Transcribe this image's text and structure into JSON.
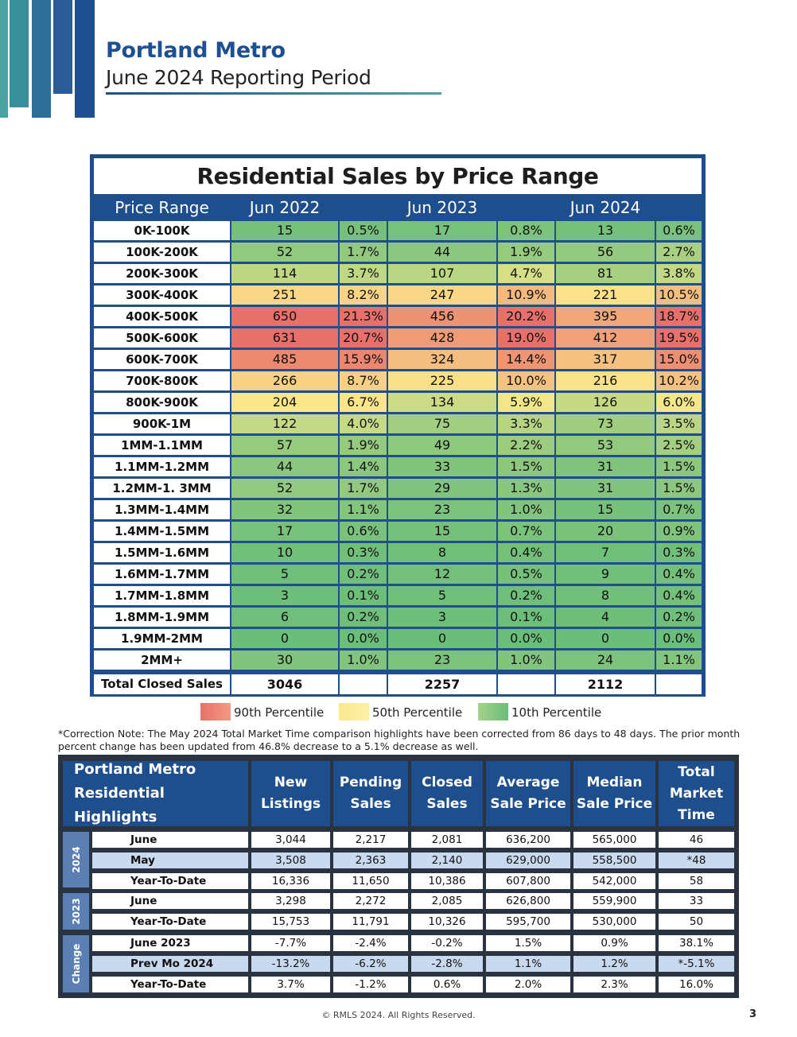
{
  "header": {
    "title": "Portland Metro",
    "subtitle": "June 2024 Reporting Period",
    "brand_colors": [
      "#4aa3a0",
      "#2e7a9a",
      "#2a5d95",
      "#1d4f91"
    ]
  },
  "price_table": {
    "title": "Residential Sales by Price Range",
    "col_headers": [
      "Price Range",
      "Jun 2022",
      "Jun 2023",
      "Jun 2024"
    ],
    "rows": [
      {
        "range": "0K-100K",
        "c22": "15",
        "p22": "0.5%",
        "c23": "17",
        "p23": "0.8%",
        "c24": "13",
        "p24": "0.6%"
      },
      {
        "range": "100K-200K",
        "c22": "52",
        "p22": "1.7%",
        "c23": "44",
        "p23": "1.9%",
        "c24": "56",
        "p24": "2.7%"
      },
      {
        "range": "200K-300K",
        "c22": "114",
        "p22": "3.7%",
        "c23": "107",
        "p23": "4.7%",
        "c24": "81",
        "p24": "3.8%"
      },
      {
        "range": "300K-400K",
        "c22": "251",
        "p22": "8.2%",
        "c23": "247",
        "p23": "10.9%",
        "c24": "221",
        "p24": "10.5%"
      },
      {
        "range": "400K-500K",
        "c22": "650",
        "p22": "21.3%",
        "c23": "456",
        "p23": "20.2%",
        "c24": "395",
        "p24": "18.7%"
      },
      {
        "range": "500K-600K",
        "c22": "631",
        "p22": "20.7%",
        "c23": "428",
        "p23": "19.0%",
        "c24": "412",
        "p24": "19.5%"
      },
      {
        "range": "600K-700K",
        "c22": "485",
        "p22": "15.9%",
        "c23": "324",
        "p23": "14.4%",
        "c24": "317",
        "p24": "15.0%"
      },
      {
        "range": "700K-800K",
        "c22": "266",
        "p22": "8.7%",
        "c23": "225",
        "p23": "10.0%",
        "c24": "216",
        "p24": "10.2%"
      },
      {
        "range": "800K-900K",
        "c22": "204",
        "p22": "6.7%",
        "c23": "134",
        "p23": "5.9%",
        "c24": "126",
        "p24": "6.0%"
      },
      {
        "range": "900K-1M",
        "c22": "122",
        "p22": "4.0%",
        "c23": "75",
        "p23": "3.3%",
        "c24": "73",
        "p24": "3.5%"
      },
      {
        "range": "1MM-1.1MM",
        "c22": "57",
        "p22": "1.9%",
        "c23": "49",
        "p23": "2.2%",
        "c24": "53",
        "p24": "2.5%"
      },
      {
        "range": "1.1MM-1.2MM",
        "c22": "44",
        "p22": "1.4%",
        "c23": "33",
        "p23": "1.5%",
        "c24": "31",
        "p24": "1.5%"
      },
      {
        "range": "1.2MM-1. 3MM",
        "c22": "52",
        "p22": "1.7%",
        "c23": "29",
        "p23": "1.3%",
        "c24": "31",
        "p24": "1.5%"
      },
      {
        "range": "1.3MM-1.4MM",
        "c22": "32",
        "p22": "1.1%",
        "c23": "23",
        "p23": "1.0%",
        "c24": "15",
        "p24": "0.7%"
      },
      {
        "range": "1.4MM-1.5MM",
        "c22": "17",
        "p22": "0.6%",
        "c23": "15",
        "p23": "0.7%",
        "c24": "20",
        "p24": "0.9%"
      },
      {
        "range": "1.5MM-1.6MM",
        "c22": "10",
        "p22": "0.3%",
        "c23": "8",
        "p23": "0.4%",
        "c24": "7",
        "p24": "0.3%"
      },
      {
        "range": "1.6MM-1.7MM",
        "c22": "5",
        "p22": "0.2%",
        "c23": "12",
        "p23": "0.5%",
        "c24": "9",
        "p24": "0.4%"
      },
      {
        "range": "1.7MM-1.8MM",
        "c22": "3",
        "p22": "0.1%",
        "c23": "5",
        "p23": "0.2%",
        "c24": "8",
        "p24": "0.4%"
      },
      {
        "range": "1.8MM-1.9MM",
        "c22": "6",
        "p22": "0.2%",
        "c23": "3",
        "p23": "0.1%",
        "c24": "4",
        "p24": "0.2%"
      },
      {
        "range": "1.9MM-2MM",
        "c22": "0",
        "p22": "0.0%",
        "c23": "0",
        "p23": "0.0%",
        "c24": "0",
        "p24": "0.0%"
      },
      {
        "range": "2MM+",
        "c22": "30",
        "p22": "1.0%",
        "c23": "23",
        "p23": "1.0%",
        "c24": "24",
        "p24": "1.1%"
      }
    ],
    "total": {
      "label": "Total Closed Sales",
      "t22": "3046",
      "t23": "2257",
      "t24": "2112"
    }
  },
  "legend": [
    {
      "label": "90th Percentile",
      "color": "#e8706a"
    },
    {
      "label": "50th Percentile",
      "color": "#fbe98c"
    },
    {
      "label": "10th Percentile",
      "color": "#6bbd7a"
    }
  ],
  "note": "*Correction Note: The May 2024 Total Market Time comparison highlights have been corrected from 86 days to 48 days. The prior month percent change has been updated from 46.8% decrease to a 5.1% decrease as well.",
  "highlights": {
    "title_line1": "Portland Metro",
    "title_line2": "Residential Highlights",
    "headers": [
      [
        "New",
        "Listings"
      ],
      [
        "Pending",
        "Sales"
      ],
      [
        "Closed",
        "Sales"
      ],
      [
        "Average",
        "Sale Price"
      ],
      [
        "Median",
        "Sale Price"
      ],
      [
        "Total",
        "Market",
        "Time"
      ]
    ],
    "groups": [
      "2024",
      "2023",
      "Change"
    ],
    "rows": [
      {
        "label": "June",
        "vals": [
          "3,044",
          "2,217",
          "2,081",
          "636,200",
          "565,000",
          "46"
        ]
      },
      {
        "label": "May",
        "vals": [
          "3,508",
          "2,363",
          "2,140",
          "629,000",
          "558,500",
          "*48"
        ]
      },
      {
        "label": "Year-To-Date",
        "vals": [
          "16,336",
          "11,650",
          "10,386",
          "607,800",
          "542,000",
          "58"
        ]
      },
      {
        "label": "June",
        "vals": [
          "3,298",
          "2,272",
          "2,085",
          "626,800",
          "559,900",
          "33"
        ]
      },
      {
        "label": "Year-To-Date",
        "vals": [
          "15,753",
          "11,791",
          "10,326",
          "595,700",
          "530,000",
          "50"
        ]
      },
      {
        "label": "June 2023",
        "vals": [
          "-7.7%",
          "-2.4%",
          "-0.2%",
          "1.5%",
          "0.9%",
          "38.1%"
        ]
      },
      {
        "label": "Prev Mo 2024",
        "vals": [
          "-13.2%",
          "-6.2%",
          "-2.8%",
          "1.1%",
          "1.2%",
          "*-5.1%"
        ]
      },
      {
        "label": "Year-To-Date",
        "vals": [
          "3.7%",
          "-1.2%",
          "0.6%",
          "2.0%",
          "2.3%",
          "16.0%"
        ]
      }
    ]
  },
  "footer": "© RMLS 2024. All Rights Reserved.",
  "page_number": "3"
}
